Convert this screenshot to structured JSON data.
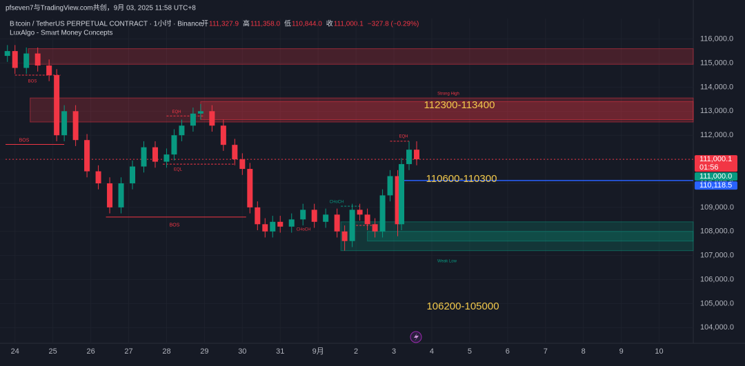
{
  "header": {
    "credit": "pfseven7与TradingView.com共创，9月 03, 2025 11:58 UTC+8",
    "symbol": "Bitcoin / TetherUS PERPETUAL CONTRACT · 1小时 · Binance",
    "ohlc": [
      {
        "label": "开",
        "value": "111,327.9"
      },
      {
        "label": "高",
        "value": "111,358.0"
      },
      {
        "label": "低",
        "value": "110,844.0"
      },
      {
        "label": "收",
        "value": "111,000.1"
      }
    ],
    "change": "−327.8 (−0.29%)",
    "indicator": "LuxAlgo - Smart Money Concepts"
  },
  "chart_data": {
    "type": "candlestick",
    "x": [
      -0.2,
      0,
      0.3,
      0.6,
      0.9,
      1.1,
      1.3,
      1.6,
      1.9,
      2.2,
      2.5,
      2.8,
      3.1,
      3.4,
      3.7,
      4.0,
      4.2,
      4.4,
      4.7,
      4.9,
      5.2,
      5.5,
      5.8,
      6.0,
      6.2,
      6.4,
      6.6,
      6.8,
      7.0,
      7.3,
      7.6,
      7.9,
      8.2,
      8.5,
      8.7,
      8.9,
      9.1,
      9.3,
      9.5,
      9.7,
      9.9,
      10.1,
      10.2,
      10.4,
      10.6
    ],
    "open": [
      115300,
      115500,
      114800,
      115400,
      114900,
      114500,
      112000,
      113000,
      111800,
      110500,
      110000,
      109000,
      110000,
      110700,
      111500,
      110900,
      111200,
      112000,
      112400,
      112900,
      113000,
      112400,
      111600,
      111000,
      110600,
      109000,
      108300,
      108000,
      108400,
      108200,
      108500,
      108900,
      108400,
      108700,
      108000,
      107600,
      108900,
      108700,
      108300,
      108000,
      109500,
      110300,
      108300,
      110800,
      111400
    ],
    "high": [
      115750,
      115750,
      115650,
      115650,
      115150,
      114750,
      113250,
      113250,
      112050,
      110750,
      110250,
      110250,
      110950,
      111750,
      111750,
      111450,
      112250,
      112650,
      113150,
      113300,
      113250,
      112650,
      111850,
      111250,
      110850,
      109250,
      108550,
      108650,
      108650,
      108750,
      109150,
      109150,
      108950,
      108950,
      108250,
      109150,
      109150,
      108950,
      108550,
      109750,
      110550,
      110550,
      111050,
      111750,
      111750
    ],
    "low": [
      115050,
      114550,
      114550,
      114650,
      114250,
      111750,
      111750,
      111550,
      110250,
      109750,
      108750,
      108750,
      109750,
      110450,
      110650,
      110650,
      110950,
      111750,
      112150,
      112650,
      112150,
      111350,
      110750,
      110350,
      108750,
      108050,
      107750,
      107750,
      107950,
      107950,
      108250,
      108150,
      108150,
      107750,
      107200,
      107350,
      108450,
      108050,
      107750,
      107750,
      109250,
      107800,
      108050,
      110550,
      110750
    ],
    "close": [
      115500,
      114800,
      115400,
      114900,
      114500,
      112000,
      113000,
      111800,
      110500,
      110000,
      109000,
      110000,
      110700,
      111500,
      110900,
      111200,
      112000,
      112400,
      112900,
      113000,
      112400,
      111600,
      111000,
      110600,
      109000,
      108300,
      108000,
      108400,
      108200,
      108500,
      108900,
      108400,
      108700,
      108000,
      107600,
      108900,
      108700,
      108300,
      108000,
      109500,
      110300,
      108300,
      110800,
      111400,
      111000
    ],
    "up_color": "#089981",
    "down_color": "#f23645",
    "xlim": [
      -0.25,
      17.9
    ],
    "xticks": [
      {
        "value": 0,
        "label": "24"
      },
      {
        "value": 1,
        "label": "25"
      },
      {
        "value": 2,
        "label": "26"
      },
      {
        "value": 3,
        "label": "27"
      },
      {
        "value": 4,
        "label": "28"
      },
      {
        "value": 5,
        "label": "29"
      },
      {
        "value": 6,
        "label": "30"
      },
      {
        "value": 7,
        "label": "31"
      },
      {
        "value": 8,
        "label": "9月"
      },
      {
        "value": 9,
        "label": "2"
      },
      {
        "value": 10,
        "label": "3"
      },
      {
        "value": 11,
        "label": "4"
      },
      {
        "value": 12,
        "label": "5"
      },
      {
        "value": 13,
        "label": "6"
      },
      {
        "value": 14,
        "label": "7"
      },
      {
        "value": 15,
        "label": "8"
      },
      {
        "value": 16,
        "label": "9"
      },
      {
        "value": 17,
        "label": "10"
      }
    ],
    "ylim": [
      103350,
      116850
    ],
    "yticks": [
      {
        "value": 104000,
        "label": "104,000.0"
      },
      {
        "value": 105000,
        "label": "105,000.0"
      },
      {
        "value": 106000,
        "label": "106,000.0"
      },
      {
        "value": 107000,
        "label": "107,000.0"
      },
      {
        "value": 108000,
        "label": "108,000.0"
      },
      {
        "value": 109000,
        "label": "109,000.0"
      },
      {
        "value": 110000,
        "label": "110,000.0"
      },
      {
        "value": 111000,
        "label": "111,000.0"
      },
      {
        "value": 112000,
        "label": "112,000.0"
      },
      {
        "value": 113000,
        "label": "113,000.0"
      },
      {
        "value": 114000,
        "label": "114,000.0"
      },
      {
        "value": 115000,
        "label": "115,000.0"
      },
      {
        "value": 116000,
        "label": "116,000.0"
      }
    ],
    "zones": [
      {
        "top": 115600,
        "bottom": 114950,
        "start": 0.35,
        "color": "#f23645"
      },
      {
        "top": 113550,
        "bottom": 112550,
        "start": 0.4,
        "color": "#f23645"
      },
      {
        "top": 113400,
        "bottom": 112650,
        "start": 4.9,
        "color": "#f23645"
      },
      {
        "top": 108400,
        "bottom": 107200,
        "start": 8.6,
        "color": "#089981"
      },
      {
        "top": 108000,
        "bottom": 107600,
        "start": 9.3,
        "color": "#089981"
      }
    ],
    "levels": [
      {
        "value": 111000.1,
        "start": -0.25,
        "color": "#f23645",
        "dash": true
      },
      {
        "value": 110118.5,
        "start": 10.05,
        "color": "#2962ff",
        "dash": false
      }
    ],
    "structure": [
      {
        "text": "BOS",
        "x1": -0.25,
        "x2": 1.3,
        "y": 111620,
        "color": "#f23645"
      },
      {
        "text": "BOS",
        "x1": 2.4,
        "x2": 6.1,
        "y": 108600,
        "color": "#f23645"
      },
      {
        "text": "BOS",
        "x1": 0,
        "x2": 1.2,
        "y": 114500,
        "color": "#f23645"
      },
      {
        "text": "EQL",
        "x1": 3.9,
        "x2": 5.8,
        "y": 110800,
        "color": "#f23645"
      },
      {
        "text": "EQH",
        "x1": 4.0,
        "x2": 5.0,
        "y": 112800,
        "color": "#f23645"
      },
      {
        "text": "CHoCH",
        "x1": 8.6,
        "x2": 9.1,
        "y": 109050,
        "color": "#089981"
      },
      {
        "text": "CHoCH",
        "x1": 9.0,
        "x2": 9.5,
        "y": 108250,
        "color": "#f23645"
      },
      {
        "text": "EQH",
        "x1": 9.9,
        "x2": 10.4,
        "y": 111750,
        "color": "#f23645"
      }
    ],
    "marks": [
      "Strong High",
      "Weak Low"
    ],
    "price_tags": [
      {
        "value": 111000.1,
        "label": "111,000.1",
        "sub": "01:56",
        "color": "#f23645"
      },
      {
        "value": 111000,
        "label": "111,000.0",
        "color": "#089981"
      },
      {
        "value": 110118.5,
        "label": "110,118.5",
        "color": "#2962ff"
      }
    ],
    "ranges": [
      "112300-113400",
      "110600-110300",
      "106200-105000"
    ]
  }
}
